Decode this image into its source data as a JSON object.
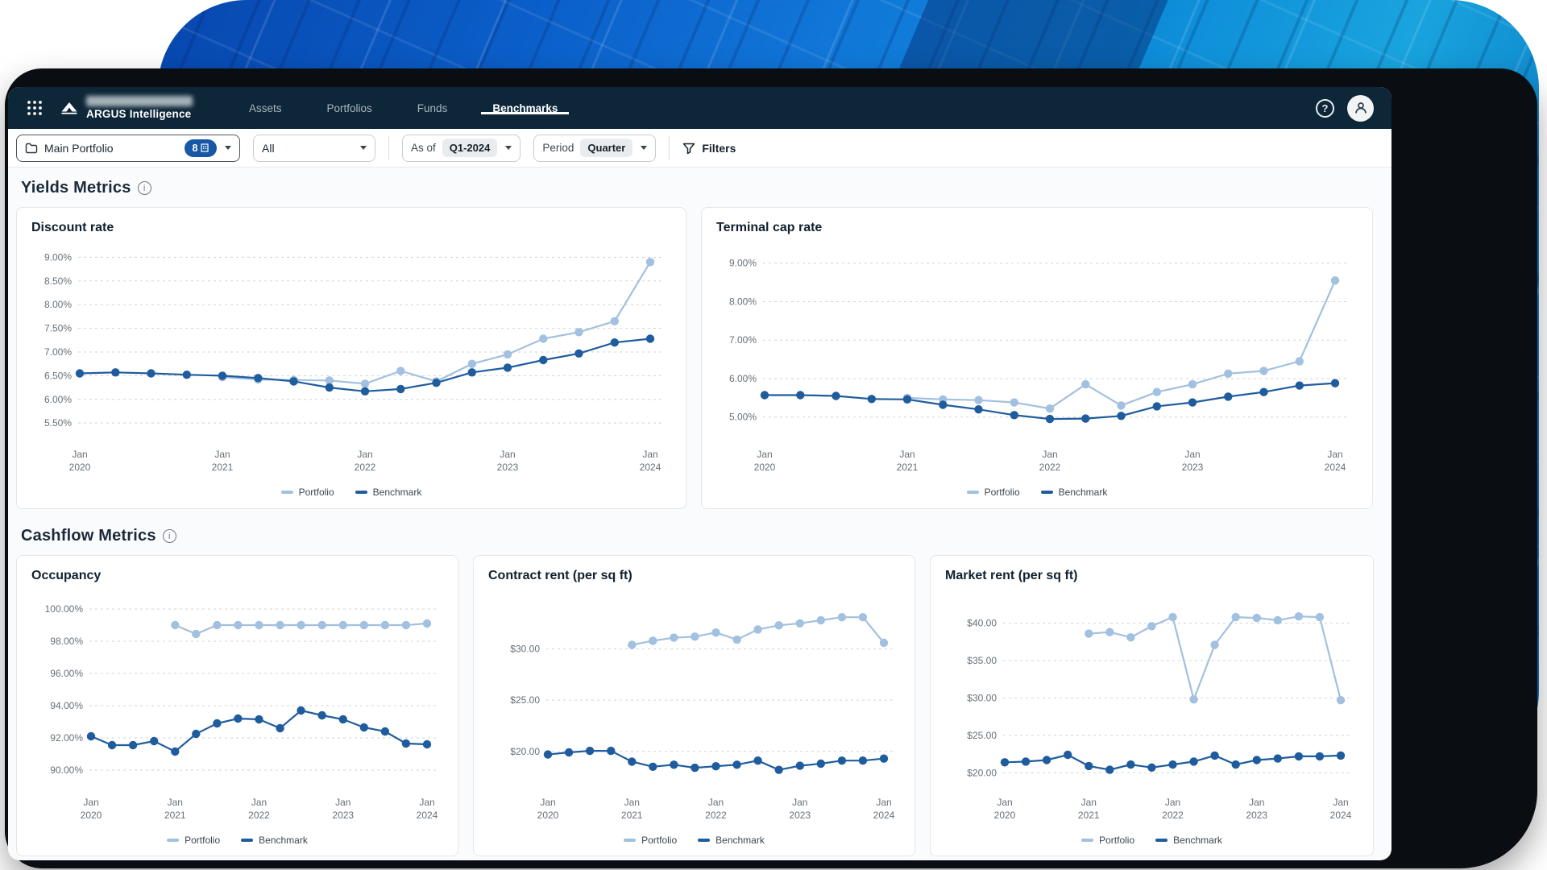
{
  "brand": {
    "name": "ARGUS Intelligence"
  },
  "nav": {
    "tabs": [
      {
        "label": "Assets",
        "active": false
      },
      {
        "label": "Portfolios",
        "active": false
      },
      {
        "label": "Funds",
        "active": false
      },
      {
        "label": "Benchmarks",
        "active": true
      }
    ],
    "help_glyph": "?"
  },
  "filters": {
    "portfolio": {
      "label": "Main Portfolio",
      "badge_count": "8"
    },
    "scope": {
      "value": "All"
    },
    "as_of": {
      "label": "As of",
      "value": "Q1-2024"
    },
    "period": {
      "label": "Period",
      "value": "Quarter"
    },
    "filters_label": "Filters"
  },
  "sections": {
    "yields": {
      "title": "Yields Metrics"
    },
    "cashflow": {
      "title": "Cashflow Metrics"
    }
  },
  "icons": {
    "app_launcher": "grid-9-dots",
    "brand_logo": "mountain-triangle",
    "avatar": "person",
    "portfolio": "folder",
    "badge": "building",
    "filters": "funnel",
    "info": "i"
  },
  "colors": {
    "portfolio_series": "#a2c0df",
    "benchmark_series": "#1e5c9e",
    "nav_bg": "#0d2638",
    "badge_bg": "#1757a6"
  },
  "chart_data": [
    {
      "type": "line",
      "title": "Discount rate",
      "n_points": 17,
      "x_tick_indices": [
        0,
        4,
        8,
        12,
        16
      ],
      "x_tick_labels": [
        [
          "Jan",
          "2020"
        ],
        [
          "Jan",
          "2021"
        ],
        [
          "Jan",
          "2022"
        ],
        [
          "Jan",
          "2023"
        ],
        [
          "Jan",
          "2024"
        ]
      ],
      "y_ticks": [
        {
          "label": "9.00%",
          "value": 9.0
        },
        {
          "label": "8.50%",
          "value": 8.5
        },
        {
          "label": "8.00%",
          "value": 8.0
        },
        {
          "label": "7.50%",
          "value": 7.5
        },
        {
          "label": "7.00%",
          "value": 7.0
        },
        {
          "label": "6.50%",
          "value": 6.5
        },
        {
          "label": "6.00%",
          "value": 6.0
        },
        {
          "label": "5.50%",
          "value": 5.5
        }
      ],
      "y_range": [
        5.18,
        9.16
      ],
      "grid": "dashed-horizontal",
      "legend_position": "bottom",
      "series": [
        {
          "name": "Portfolio",
          "color": "#a2c0df",
          "values": [
            null,
            null,
            null,
            null,
            6.47,
            6.42,
            6.41,
            6.4,
            6.33,
            6.6,
            6.38,
            6.75,
            6.95,
            7.28,
            7.42,
            7.65,
            8.9
          ]
        },
        {
          "name": "Benchmark",
          "color": "#1e5c9e",
          "values": [
            6.55,
            6.57,
            6.55,
            6.52,
            6.5,
            6.45,
            6.38,
            6.25,
            6.17,
            6.22,
            6.35,
            6.57,
            6.67,
            6.83,
            6.97,
            7.2,
            7.28
          ]
        }
      ]
    },
    {
      "type": "line",
      "title": "Terminal cap rate",
      "n_points": 17,
      "x_tick_indices": [
        0,
        4,
        8,
        12,
        16
      ],
      "x_tick_labels": [
        [
          "Jan",
          "2020"
        ],
        [
          "Jan",
          "2021"
        ],
        [
          "Jan",
          "2022"
        ],
        [
          "Jan",
          "2023"
        ],
        [
          "Jan",
          "2024"
        ]
      ],
      "y_ticks": [
        {
          "label": "9.00%",
          "value": 9.0
        },
        {
          "label": "8.00%",
          "value": 8.0
        },
        {
          "label": "7.00%",
          "value": 7.0
        },
        {
          "label": "6.00%",
          "value": 6.0
        },
        {
          "label": "5.00%",
          "value": 5.0
        }
      ],
      "y_range": [
        4.45,
        9.35
      ],
      "grid": "dashed-horizontal",
      "legend_position": "bottom",
      "series": [
        {
          "name": "Portfolio",
          "color": "#a2c0df",
          "values": [
            null,
            null,
            null,
            null,
            5.5,
            5.46,
            5.44,
            5.38,
            5.22,
            5.85,
            5.3,
            5.65,
            5.85,
            6.13,
            6.2,
            6.45,
            8.55
          ]
        },
        {
          "name": "Benchmark",
          "color": "#1e5c9e",
          "values": [
            5.57,
            5.57,
            5.55,
            5.47,
            5.46,
            5.32,
            5.2,
            5.05,
            4.95,
            4.96,
            5.03,
            5.28,
            5.38,
            5.53,
            5.65,
            5.82,
            5.88
          ]
        }
      ]
    },
    {
      "type": "line",
      "title": "Occupancy",
      "n_points": 17,
      "x_tick_indices": [
        0,
        4,
        8,
        12,
        16
      ],
      "x_tick_labels": [
        [
          "Jan",
          "2020"
        ],
        [
          "Jan",
          "2021"
        ],
        [
          "Jan",
          "2022"
        ],
        [
          "Jan",
          "2023"
        ],
        [
          "Jan",
          "2024"
        ]
      ],
      "y_ticks": [
        {
          "label": "100.00%",
          "value": 100.0
        },
        {
          "label": "98.00%",
          "value": 98.0
        },
        {
          "label": "96.00%",
          "value": 96.0
        },
        {
          "label": "94.00%",
          "value": 94.0
        },
        {
          "label": "92.00%",
          "value": 92.0
        },
        {
          "label": "90.00%",
          "value": 90.0
        }
      ],
      "y_range": [
        89.0,
        100.7
      ],
      "grid": "dashed-horizontal",
      "legend_position": "bottom",
      "series": [
        {
          "name": "Portfolio",
          "color": "#a2c0df",
          "values": [
            null,
            null,
            null,
            null,
            99.0,
            98.45,
            99.0,
            99.0,
            99.0,
            99.0,
            99.0,
            99.0,
            99.0,
            99.0,
            99.0,
            99.0,
            99.1
          ]
        },
        {
          "name": "Benchmark",
          "color": "#1e5c9e",
          "values": [
            92.1,
            91.55,
            91.55,
            91.8,
            91.15,
            92.25,
            92.9,
            93.2,
            93.15,
            92.6,
            93.7,
            93.4,
            93.15,
            92.65,
            92.4,
            91.65,
            91.6
          ]
        }
      ]
    },
    {
      "type": "line",
      "title": "Contract rent (per sq ft)",
      "n_points": 17,
      "x_tick_indices": [
        0,
        4,
        8,
        12,
        16
      ],
      "x_tick_labels": [
        [
          "Jan",
          "2020"
        ],
        [
          "Jan",
          "2021"
        ],
        [
          "Jan",
          "2022"
        ],
        [
          "Jan",
          "2023"
        ],
        [
          "Jan",
          "2024"
        ]
      ],
      "y_ticks": [
        {
          "label": "$30.00",
          "value": 30.0
        },
        {
          "label": "$25.00",
          "value": 25.0
        },
        {
          "label": "$20.00",
          "value": 20.0
        }
      ],
      "y_range": [
        16.6,
        35.0
      ],
      "grid": "dashed-horizontal",
      "legend_position": "bottom",
      "series": [
        {
          "name": "Portfolio",
          "color": "#a2c0df",
          "values": [
            null,
            null,
            null,
            null,
            30.4,
            30.8,
            31.1,
            31.2,
            31.6,
            30.9,
            31.9,
            32.3,
            32.5,
            32.8,
            33.1,
            33.1,
            30.6
          ]
        },
        {
          "name": "Benchmark",
          "color": "#1e5c9e",
          "values": [
            19.7,
            19.9,
            20.05,
            20.05,
            19.0,
            18.5,
            18.7,
            18.4,
            18.55,
            18.7,
            19.1,
            18.2,
            18.6,
            18.8,
            19.1,
            19.1,
            19.3
          ]
        }
      ]
    },
    {
      "type": "line",
      "title": "Market rent (per sq ft)",
      "n_points": 17,
      "x_tick_indices": [
        0,
        4,
        8,
        12,
        16
      ],
      "x_tick_labels": [
        [
          "Jan",
          "2020"
        ],
        [
          "Jan",
          "2021"
        ],
        [
          "Jan",
          "2022"
        ],
        [
          "Jan",
          "2023"
        ],
        [
          "Jan",
          "2024"
        ]
      ],
      "y_ticks": [
        {
          "label": "$40.00",
          "value": 40.0
        },
        {
          "label": "$35.00",
          "value": 35.0
        },
        {
          "label": "$30.00",
          "value": 30.0
        },
        {
          "label": "$25.00",
          "value": 25.0
        },
        {
          "label": "$20.00",
          "value": 20.0
        }
      ],
      "y_range": [
        18.2,
        43.4
      ],
      "grid": "dashed-horizontal",
      "legend_position": "bottom",
      "series": [
        {
          "name": "Portfolio",
          "color": "#a2c0df",
          "values": [
            null,
            null,
            null,
            null,
            38.6,
            38.8,
            38.1,
            39.6,
            40.8,
            29.8,
            37.1,
            40.8,
            40.7,
            40.4,
            40.9,
            40.8,
            29.7
          ]
        },
        {
          "name": "Benchmark",
          "color": "#1e5c9e",
          "values": [
            21.4,
            21.5,
            21.7,
            22.4,
            20.9,
            20.4,
            21.1,
            20.7,
            21.1,
            21.5,
            22.3,
            21.1,
            21.7,
            21.9,
            22.2,
            22.2,
            22.3
          ]
        }
      ]
    }
  ]
}
